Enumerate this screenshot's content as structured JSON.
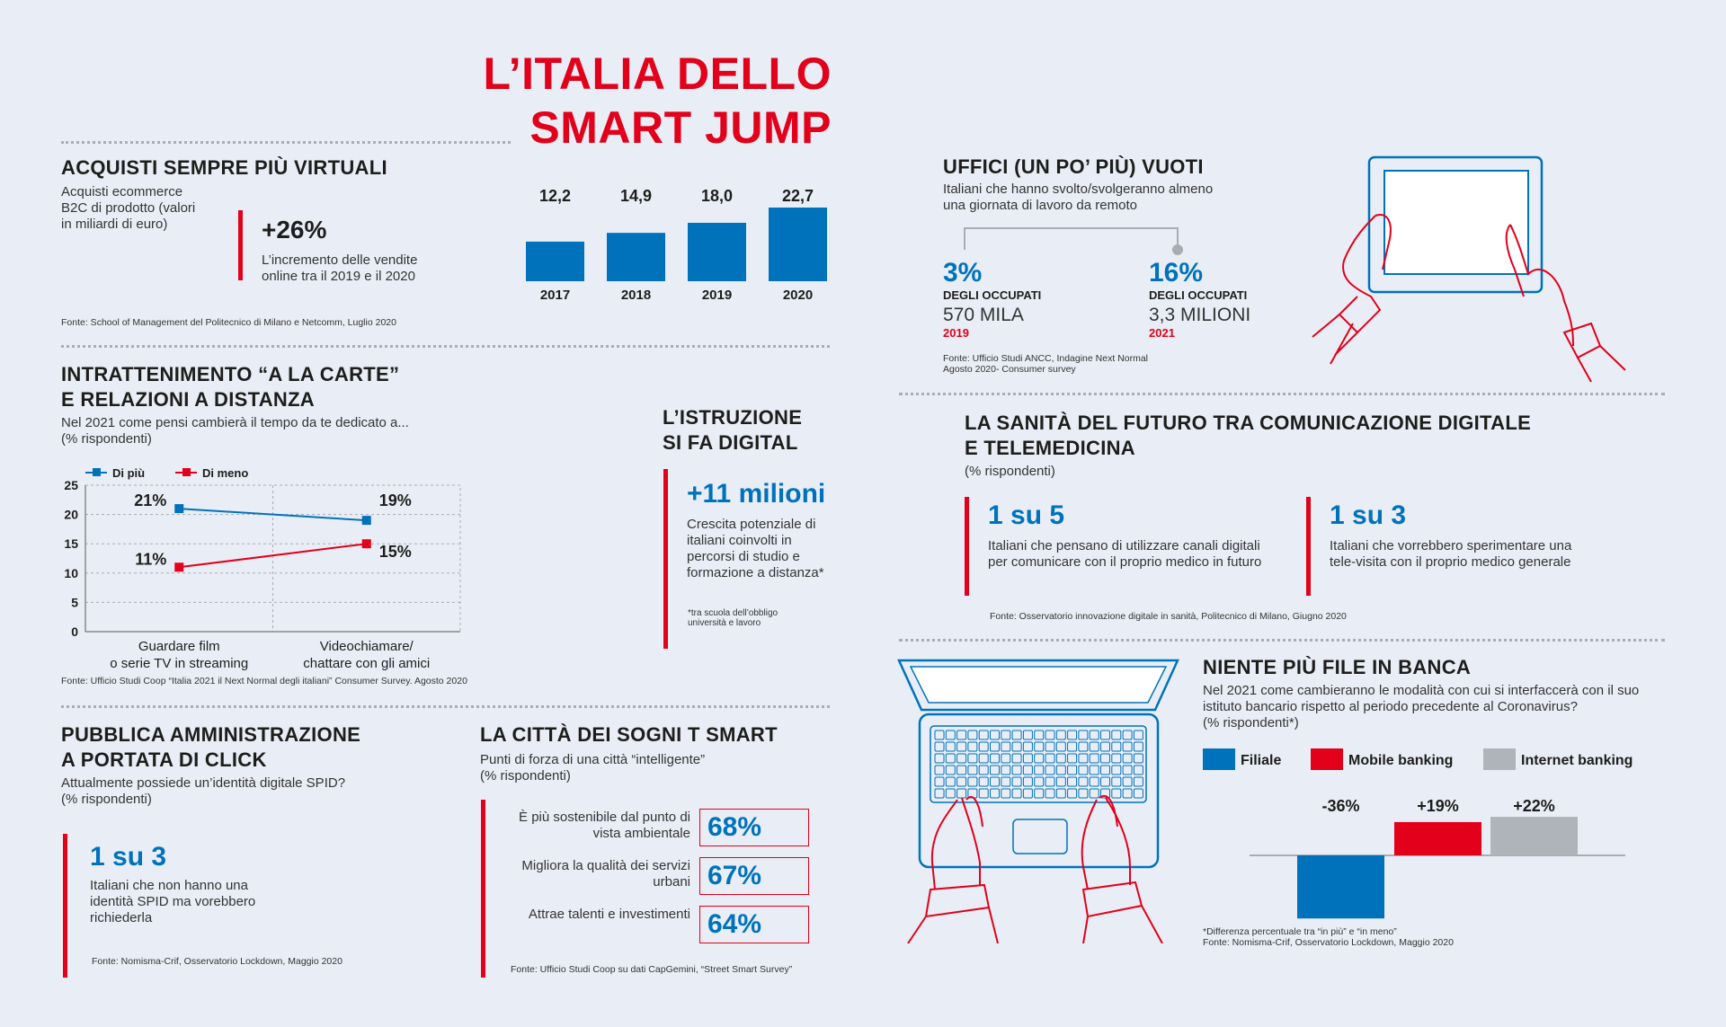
{
  "title": {
    "line1": "L’ITALIA DELLO",
    "line2": "SMART JUMP"
  },
  "acquisti": {
    "heading": "ACQUISTI SEMPRE PIÙ VIRTUALI",
    "subtitle": "Acquisti ecommerce B2C di prodotto (valori in miliardi di euro)",
    "big": "+26%",
    "desc": "L’incremento delle vendite online tra il 2019 e il 2020",
    "source": "Fonte: School of Management del Politecnico di Milano e Netcomm, Luglio 2020"
  },
  "intrattenimento": {
    "heading1": "INTRATTENIMENTO “A LA CARTE”",
    "heading2": "E RELAZIONI A DISTANZA",
    "subtitle": "Nel 2021 come pensi cambierà il tempo da te dedicato a...",
    "subtitle2": "(% rispondenti)",
    "source": "Fonte: Ufficio Studi Coop “Italia 2021 il Next Normal degli italiani” Consumer Survey. Agosto 2020"
  },
  "istruzione": {
    "heading1": "L’ISTRUZIONE",
    "heading2": "SI FA DIGITAL",
    "big": "+11 milioni",
    "desc": "Crescita potenziale di italiani coinvolti in percorsi di studio e formazione a distanza*",
    "note": "*tra scuola dell’obbligo università e lavoro"
  },
  "pa": {
    "heading1": "PUBBLICA AMMINISTRAZIONE",
    "heading2": "A PORTATA DI CLICK",
    "subtitle": "Attualmente possiede un’identità digitale SPID?",
    "subtitle2": "(% rispondenti)",
    "big": "1 su 3",
    "desc": "Italiani che non hanno una identità SPID ma vorebbero richiederla",
    "source": "Fonte: Nomisma-Crif, Osservatorio Lockdown, Maggio 2020"
  },
  "citta": {
    "heading": "LA CITTÀ DEI SOGNI T SMART",
    "subtitle": "Punti di forza di una città “intelligente”",
    "subtitle2": "(% rispondenti)",
    "items": [
      {
        "label": "È più sostenibile dal punto di vista ambientale",
        "value": "68%"
      },
      {
        "label": "Migliora la qualità dei servizi urbani",
        "value": "67%"
      },
      {
        "label": "Attrae talenti e investimenti",
        "value": "64%"
      }
    ],
    "source": "Fonte: Ufficio Studi Coop su dati CapGemini, “Street Smart Survey”"
  },
  "uffici": {
    "heading": "UFFICI (UN PO’ PIÙ) VUOTI",
    "subtitle": "Italiani che hanno svolto/svolgeranno almeno una giornata di lavoro da remoto",
    "left": {
      "pct": "3%",
      "label": "DEGLI OCCUPATI",
      "value": "570 MILA",
      "year": "2019"
    },
    "right": {
      "pct": "16%",
      "label": "DEGLI OCCUPATI",
      "value": "3,3 MILIONI",
      "year": "2021"
    },
    "source1": "Fonte: Ufficio Studi ANCC, Indagine Next Normal",
    "source2": "Agosto 2020- Consumer survey"
  },
  "sanita": {
    "heading1": "LA SANITÀ DEL FUTURO TRA COMUNICAZIONE DIGITALE",
    "heading2": "E TELEMEDICINA",
    "subtitle": "(% rispondenti)",
    "left": {
      "big": "1 su 5",
      "desc": "Italiani che pensano di utilizzare canali digitali per comunicare con il proprio medico in futuro"
    },
    "right": {
      "big": "1 su 3",
      "desc": "Italiani che vorrebbero sperimentare una tele-visita con il proprio medico generale"
    },
    "source": "Fonte: Osservatorio innovazione digitale in sanità, Politecnico di Milano, Giugno 2020"
  },
  "banca": {
    "heading": "NIENTE PIÙ FILE IN BANCA",
    "subtitle": "Nel 2021 come cambieranno le modalità con cui si interfaccerà con il suo istituto bancario rispetto al periodo precedente al Coronavirus?",
    "subtitle2": "(% rispondenti*)",
    "note": "*Differenza percentuale tra “in più” e “in meno”",
    "source": "Fonte: Nomisma-Crif, Osservatorio Lockdown, Maggio 2020"
  },
  "chart_data": [
    {
      "type": "bar",
      "categories": [
        "2017",
        "2018",
        "2019",
        "2020"
      ],
      "values": [
        12.2,
        14.9,
        18.0,
        22.7
      ],
      "value_labels": [
        "12,2",
        "14,9",
        "18,0",
        "22,7"
      ],
      "color": "#0072bc"
    },
    {
      "type": "line",
      "categories": [
        "Guardare film o serie TV in streaming",
        "Videochiamare/ chattare con gli amici"
      ],
      "category_lines": [
        [
          "Guardare film",
          "o serie TV in streaming"
        ],
        [
          "Videochiamare/",
          "chattare con gli amici"
        ]
      ],
      "series": [
        {
          "name": "Di più",
          "values": [
            21,
            19
          ],
          "color": "#0072bc"
        },
        {
          "name": "Di meno",
          "values": [
            11,
            15
          ],
          "color": "#e2001a"
        }
      ],
      "yticks": [
        0,
        5,
        10,
        15,
        20,
        25
      ],
      "ylim": [
        0,
        25
      ],
      "grid": true,
      "legend": "top-left"
    },
    {
      "type": "bar",
      "series": [
        {
          "name": "Filiale",
          "value": -36,
          "label": "-36%",
          "color": "#0072bc"
        },
        {
          "name": "Mobile banking",
          "value": 19,
          "label": "+19%",
          "color": "#e2001a"
        },
        {
          "name": "Internet banking",
          "value": 22,
          "label": "+22%",
          "color": "#aeb4ba"
        }
      ],
      "legend": "top"
    }
  ]
}
